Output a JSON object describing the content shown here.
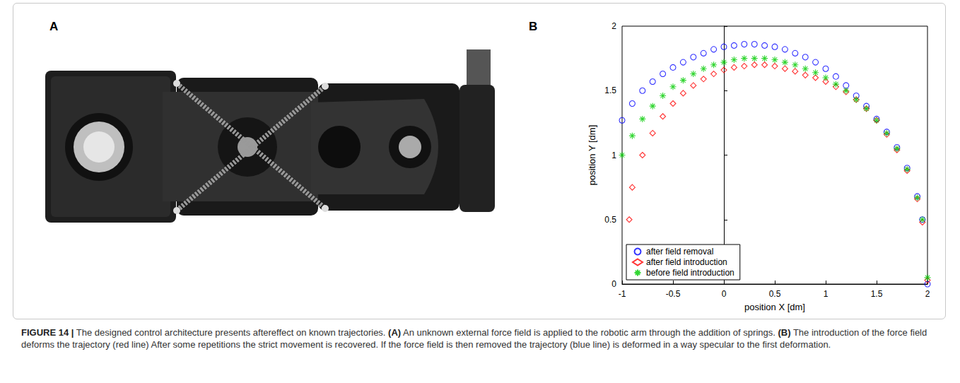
{
  "figure": {
    "panel_labels": [
      "A",
      "B"
    ],
    "caption": [
      {
        "text": "FIGURE 14 |",
        "bold": true
      },
      {
        "text": " The designed control architecture presents aftereffect on known trajectories. ",
        "bold": false
      },
      {
        "text": "(A)",
        "bold": true
      },
      {
        "text": " An unknown external force field is applied to the robotic arm through the addition of springs. ",
        "bold": false
      },
      {
        "text": "(B)",
        "bold": true
      },
      {
        "text": " The introduction of the force field deforms the trajectory (red line) After some repetitions the strict movement is recovered. If the force field is then removed the trajectory (blue line) is deformed in a way specular to the first deformation.",
        "bold": false
      }
    ]
  },
  "chart_data": {
    "type": "scatter",
    "x_label": "position X [dm]",
    "y_label": "position Y [dm]",
    "xlim": [
      -1,
      2
    ],
    "xticks": [
      -1,
      -0.5,
      0,
      0.5,
      1,
      1.5,
      2
    ],
    "ylim": [
      0,
      2
    ],
    "yticks": [
      0,
      0.5,
      1,
      1.5,
      2
    ],
    "grid": false,
    "legend": "lower left",
    "series": [
      {
        "name": "after field removal",
        "color": "#0000ff",
        "marker": "circle",
        "x": [
          -1,
          -0.9,
          -0.8,
          -0.7,
          -0.6,
          -0.5,
          -0.4,
          -0.3,
          -0.2,
          -0.1,
          0,
          0.1,
          0.2,
          0.3,
          0.4,
          0.5,
          0.6,
          0.7,
          0.8,
          0.9,
          1.0,
          1.1,
          1.2,
          1.3,
          1.4,
          1.5,
          1.6,
          1.7,
          1.8,
          1.9,
          1.95,
          2.0
        ],
        "values": [
          1.27,
          1.4,
          1.5,
          1.57,
          1.63,
          1.68,
          1.72,
          1.76,
          1.79,
          1.82,
          1.84,
          1.85,
          1.86,
          1.86,
          1.85,
          1.84,
          1.82,
          1.79,
          1.76,
          1.72,
          1.67,
          1.61,
          1.54,
          1.46,
          1.38,
          1.28,
          1.18,
          1.06,
          0.9,
          0.68,
          0.5,
          0.0
        ]
      },
      {
        "name": "after field introduction",
        "color": "#ff0000",
        "marker": "diamond",
        "x": [
          -0.93,
          -0.9,
          -0.8,
          -0.7,
          -0.6,
          -0.5,
          -0.4,
          -0.3,
          -0.2,
          -0.1,
          0,
          0.1,
          0.2,
          0.3,
          0.4,
          0.5,
          0.6,
          0.7,
          0.8,
          0.9,
          1.0,
          1.1,
          1.2,
          1.3,
          1.4,
          1.5,
          1.6,
          1.7,
          1.8,
          1.9,
          1.95,
          2.0
        ],
        "values": [
          0.5,
          0.75,
          1.0,
          1.17,
          1.3,
          1.4,
          1.48,
          1.54,
          1.59,
          1.63,
          1.66,
          1.68,
          1.69,
          1.7,
          1.7,
          1.69,
          1.67,
          1.65,
          1.62,
          1.6,
          1.57,
          1.53,
          1.49,
          1.43,
          1.36,
          1.27,
          1.16,
          1.04,
          0.88,
          0.66,
          0.48,
          0.03
        ]
      },
      {
        "name": "before field introduction",
        "color": "#00cc00",
        "marker": "asterisk",
        "x": [
          -1,
          -0.9,
          -0.8,
          -0.7,
          -0.6,
          -0.5,
          -0.4,
          -0.3,
          -0.2,
          -0.1,
          0,
          0.1,
          0.2,
          0.3,
          0.4,
          0.5,
          0.6,
          0.7,
          0.8,
          0.9,
          1.0,
          1.1,
          1.2,
          1.3,
          1.4,
          1.5,
          1.6,
          1.7,
          1.8,
          1.9,
          1.95,
          2.0
        ],
        "values": [
          1.0,
          1.15,
          1.28,
          1.38,
          1.46,
          1.53,
          1.58,
          1.63,
          1.67,
          1.7,
          1.72,
          1.74,
          1.75,
          1.75,
          1.75,
          1.74,
          1.72,
          1.7,
          1.67,
          1.64,
          1.6,
          1.55,
          1.5,
          1.43,
          1.36,
          1.27,
          1.17,
          1.05,
          0.89,
          0.67,
          0.5,
          0.05
        ]
      }
    ]
  }
}
